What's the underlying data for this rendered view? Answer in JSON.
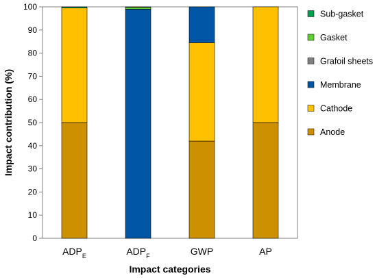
{
  "chart_data": {
    "type": "bar",
    "stacked": true,
    "xlabel": "Impact categories",
    "ylabel": "Impact contribution (%)",
    "ylim": [
      0,
      100
    ],
    "yticks": [
      0,
      10,
      20,
      30,
      40,
      50,
      60,
      70,
      80,
      90,
      100
    ],
    "grid": false,
    "legend_placement": "right",
    "categories": [
      {
        "base": "ADP",
        "sub": "E"
      },
      {
        "base": "ADP",
        "sub": "F"
      },
      {
        "base": "GWP",
        "sub": ""
      },
      {
        "base": "AP",
        "sub": ""
      }
    ],
    "series": [
      {
        "name": "Anode",
        "color": "#CC9000",
        "values": [
          50,
          0,
          42,
          50
        ]
      },
      {
        "name": "Cathode",
        "color": "#FFC000",
        "values": [
          49.5,
          0,
          42.5,
          50
        ]
      },
      {
        "name": "Membrane",
        "color": "#0055A4",
        "values": [
          0,
          99,
          15.5,
          0
        ]
      },
      {
        "name": "Grafoil sheets",
        "color": "#7F7F7F",
        "values": [
          0,
          0,
          0,
          0
        ]
      },
      {
        "name": "Gasket",
        "color": "#66CC33",
        "values": [
          0,
          0.8,
          0,
          0
        ]
      },
      {
        "name": "Sub-gasket",
        "color": "#00A050",
        "values": [
          0.5,
          0.2,
          0,
          0
        ]
      }
    ],
    "legend_order": [
      "Sub-gasket",
      "Gasket",
      "Grafoil sheets",
      "Membrane",
      "Cathode",
      "Anode"
    ]
  }
}
